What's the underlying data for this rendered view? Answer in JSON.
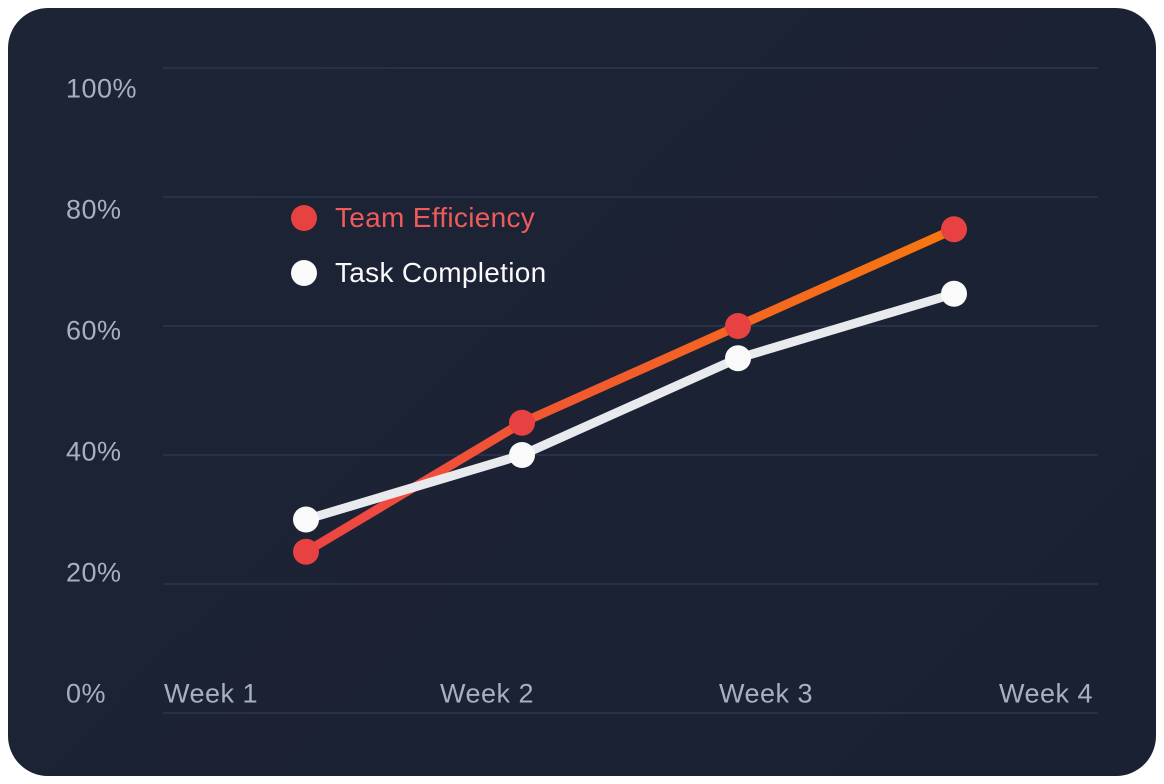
{
  "page": {
    "background": "#ffffff"
  },
  "card": {
    "background_top": "#1d2436",
    "background_bottom": "#1a2132"
  },
  "chart_data": {
    "type": "line",
    "title": "",
    "xlabel": "",
    "ylabel": "",
    "categories": [
      "Week 1",
      "Week 2",
      "Week 3",
      "Week 4"
    ],
    "series": [
      {
        "name": "Team Efficiency",
        "values": [
          25,
          45,
          60,
          75
        ],
        "line_color_start": "#ed4445",
        "line_color_end": "#f8770f",
        "marker_color": "#e84142",
        "legend_text_color": "#ef5a5a"
      },
      {
        "name": "Task Completion",
        "values": [
          30,
          40,
          55,
          65
        ],
        "line_color_start": "#e9eaee",
        "line_color_end": "#e9eaee",
        "marker_color": "#fafafb",
        "legend_text_color": "#fafafb"
      }
    ],
    "ylim": [
      0,
      100
    ],
    "yticks": [
      {
        "value": 100,
        "label": "100%"
      },
      {
        "value": 80,
        "label": "80%"
      },
      {
        "value": 60,
        "label": "60%"
      },
      {
        "value": 40,
        "label": "40%"
      },
      {
        "value": 20,
        "label": "20%"
      },
      {
        "value": 0,
        "label": "0%"
      }
    ],
    "grid": {
      "horizontal": true,
      "vertical": false,
      "color": "#283148"
    },
    "axis_label_color": "#a8afc0",
    "legend": {
      "position": "inside-top-left"
    }
  }
}
